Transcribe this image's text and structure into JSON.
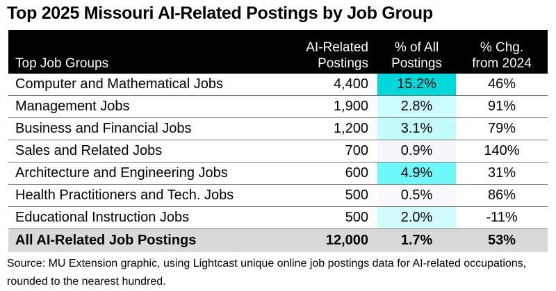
{
  "title": "Top 2025 Missouri AI-Related Postings by Job Group",
  "header": {
    "col0": "Top Job Groups",
    "col1_line1": "AI-Related",
    "col1_line2": "Postings",
    "col2_line1": "% of All",
    "col2_line2": "Postings",
    "col3_line1": "% Chg.",
    "col3_line2": "from 2024"
  },
  "rows": [
    {
      "group": "Computer and Mathematical Jobs",
      "postings": "4,400",
      "pct_all": "15.2%",
      "chg": "46%",
      "shade": "#00d8dc"
    },
    {
      "group": "Management Jobs",
      "postings": "1,900",
      "pct_all": "2.8%",
      "chg": "91%",
      "shade": "#ccfcfc"
    },
    {
      "group": "Business and Financial Jobs",
      "postings": "1,200",
      "pct_all": "3.1%",
      "chg": "79%",
      "shade": "#c4fbfb"
    },
    {
      "group": "Sales and Related Jobs",
      "postings": "700",
      "pct_all": "0.9%",
      "chg": "140%",
      "shade": "#f6f8fb"
    },
    {
      "group": "Architecture and Engineering Jobs",
      "postings": "600",
      "pct_all": "4.9%",
      "chg": "31%",
      "shade": "#6ff8fa"
    },
    {
      "group": "Health Practitioners and Tech. Jobs",
      "postings": "500",
      "pct_all": "0.5%",
      "chg": "86%",
      "shade": "#fbf9fd"
    },
    {
      "group": "Educational Instruction Jobs",
      "postings": "500",
      "pct_all": "2.0%",
      "chg": "-11%",
      "shade": "#d2fcfc"
    }
  ],
  "total": {
    "group": "All AI-Related Job Postings",
    "postings": "12,000",
    "pct_all": "1.7%",
    "chg": "53%"
  },
  "source": "Source: MU Extension graphic, using Lightcast unique online job postings data for AI-related occupations, rounded to the nearest hundred.",
  "chart_data": {
    "type": "table",
    "title": "Top 2025 Missouri AI-Related Postings by Job Group",
    "columns": [
      "Top Job Groups",
      "AI-Related Postings",
      "% of All Postings",
      "% Chg. from 2024"
    ],
    "rows": [
      [
        "Computer and Mathematical Jobs",
        4400,
        15.2,
        46
      ],
      [
        "Management Jobs",
        1900,
        2.8,
        91
      ],
      [
        "Business and Financial Jobs",
        1200,
        3.1,
        79
      ],
      [
        "Sales and Related Jobs",
        700,
        0.9,
        140
      ],
      [
        "Architecture and Engineering Jobs",
        600,
        4.9,
        31
      ],
      [
        "Health Practitioners and Tech. Jobs",
        500,
        0.5,
        86
      ],
      [
        "Educational Instruction Jobs",
        500,
        2.0,
        -11
      ]
    ],
    "total": [
      "All AI-Related Job Postings",
      12000,
      1.7,
      53
    ],
    "heatmap_column": "% of All Postings",
    "note": "Source: MU Extension graphic, using Lightcast unique online job postings data for AI-related occupations, rounded to the nearest hundred."
  }
}
